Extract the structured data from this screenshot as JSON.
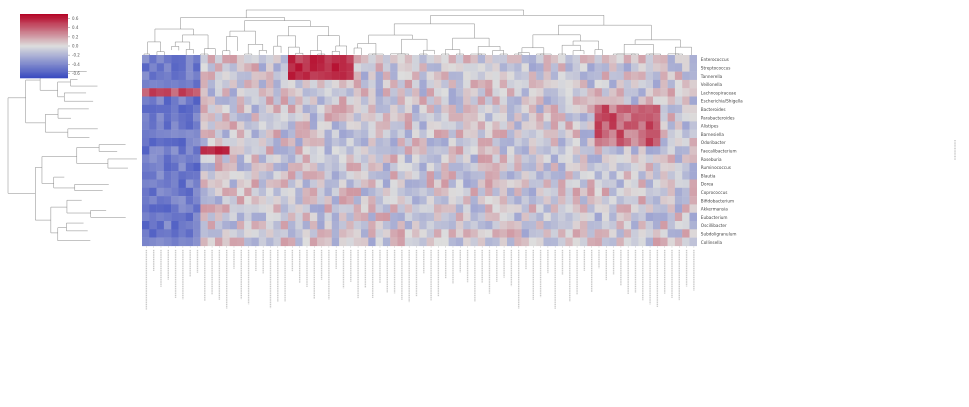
{
  "chart_data": {
    "type": "heatmap",
    "title": "",
    "xlabel": "",
    "ylabel": "",
    "colorbar": {
      "ticks": [
        "0.6",
        "0.4",
        "0.2",
        "0.0",
        "-0.2",
        "-0.4",
        "-0.6"
      ],
      "min": -0.7,
      "max": 0.7,
      "low_color": "#3b4cc0",
      "mid_color": "#dddddd",
      "high_color": "#b40426"
    },
    "rows": [
      "Enterococcus",
      "Streptococcus",
      "Tannerella",
      "Veillonella",
      "Lachnospiraceae",
      "Escherichia/Shigella",
      "Bacteroides",
      "Parabacteroides",
      "Alistipes",
      "Barnesiella",
      "Odoribacter",
      "Faecalibacterium",
      "Roseburia",
      "Ruminococcus",
      "Blautia",
      "Dorea",
      "Coprococcus",
      "Bifidobacterium",
      "Akkermansia",
      "Eubacterium",
      "Oscillibacter",
      "Subdoligranulum",
      "Collinsella"
    ],
    "matrix_shape": [
      23,
      76
    ],
    "matrix_note": "row-major values in [-0.7, 0.7]"
  }
}
